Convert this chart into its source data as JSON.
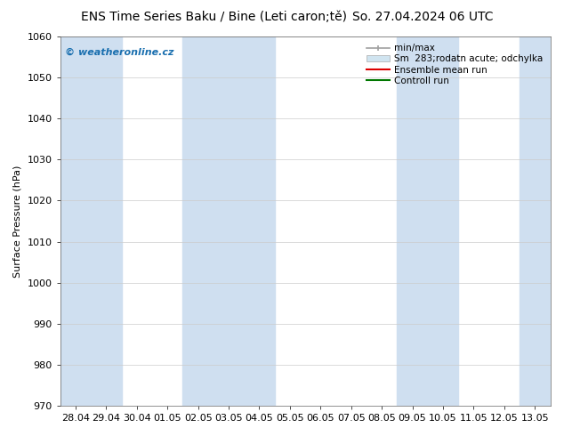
{
  "title_left": "ENS Time Series Baku / Bine (Leti caron;tě)",
  "title_right": "So. 27.04.2024 06 UTC",
  "ylabel": "Surface Pressure (hPa)",
  "ylim": [
    970,
    1060
  ],
  "yticks": [
    970,
    980,
    990,
    1000,
    1010,
    1020,
    1030,
    1040,
    1050,
    1060
  ],
  "xtick_labels": [
    "28.04",
    "29.04",
    "30.04",
    "01.05",
    "02.05",
    "03.05",
    "04.05",
    "05.05",
    "06.05",
    "07.05",
    "08.05",
    "09.05",
    "10.05",
    "11.05",
    "12.05",
    "13.05"
  ],
  "shaded_band_color": "#cfdff0",
  "plot_bg_color": "#ffffff",
  "figure_bg_color": "#ffffff",
  "watermark": "© weatheronline.cz",
  "watermark_color": "#1a6faf",
  "legend_minmax": "min/max",
  "legend_sm": "Sm  283;rodatn acute; odchylka",
  "legend_ens": "Ensemble mean run",
  "legend_ctrl": "Controll run",
  "legend_minmax_color": "#a0a0a0",
  "legend_sm_color": "#d0e4f0",
  "legend_ens_color": "#dd0000",
  "legend_ctrl_color": "#007700",
  "title_fontsize": 10,
  "axis_label_fontsize": 8,
  "tick_fontsize": 8,
  "shaded_band_indices": [
    0,
    1,
    4,
    5,
    6,
    11,
    12,
    15
  ],
  "grid_color": "#cccccc"
}
